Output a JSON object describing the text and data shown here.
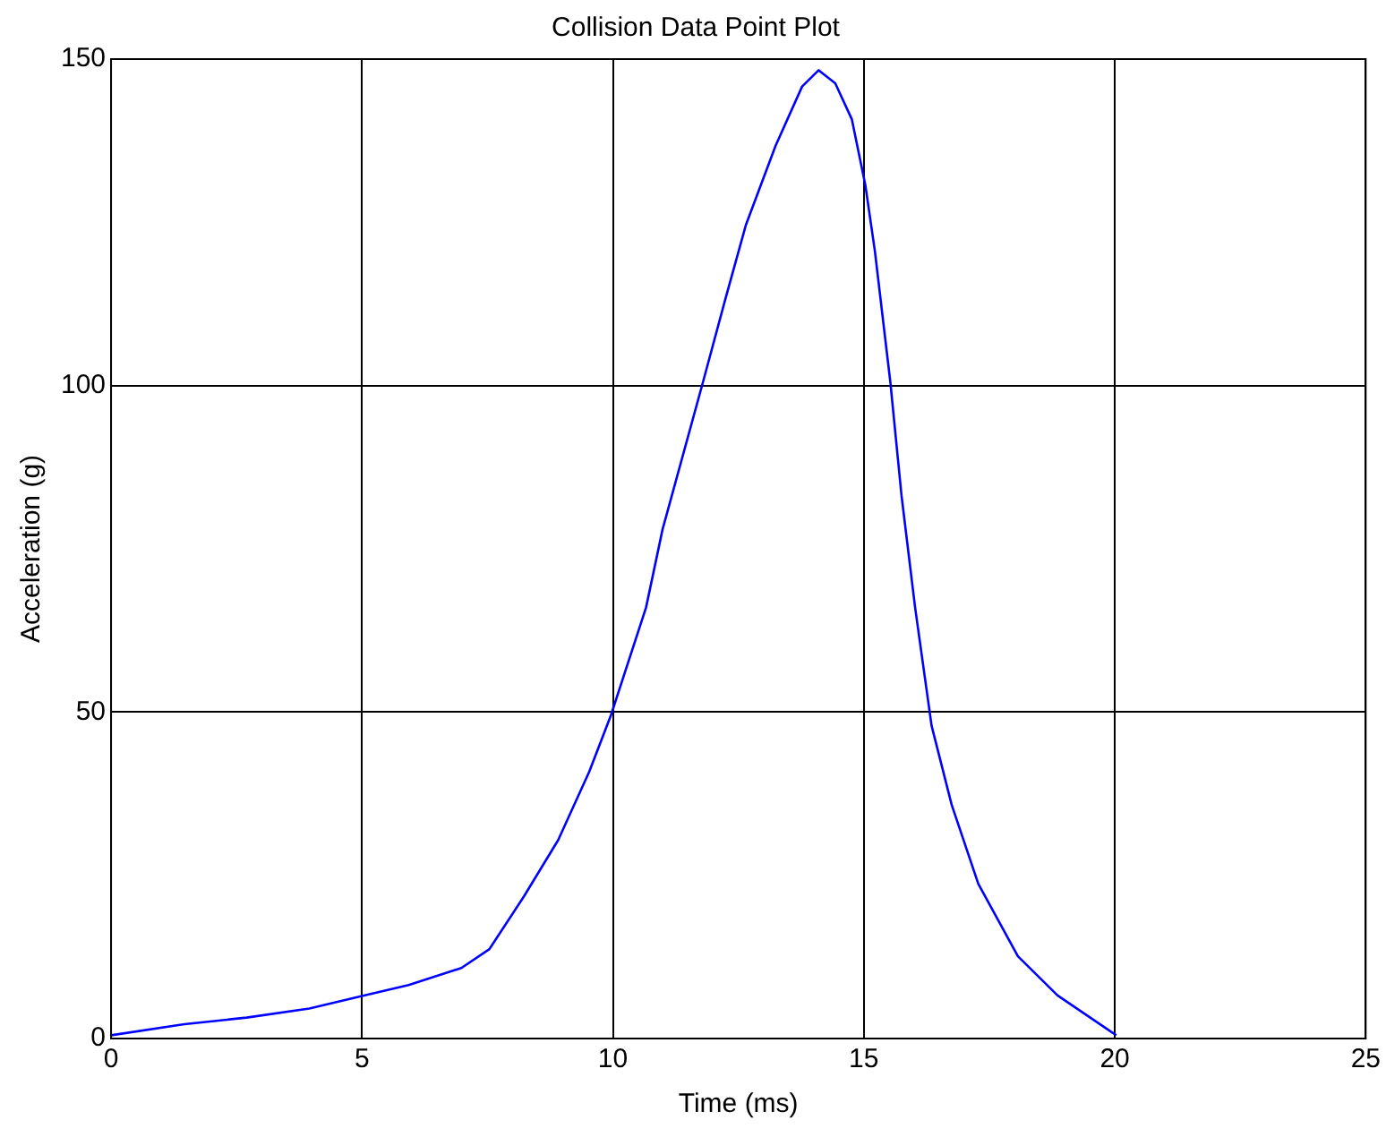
{
  "chart_data": {
    "type": "line",
    "title": "Collision Data Point Plot",
    "xlabel": "Time (ms)",
    "ylabel": "Acceleration (g)",
    "xlim": [
      0,
      25
    ],
    "xticks": [
      0,
      5,
      10,
      15,
      20,
      25
    ],
    "ylim": [
      0,
      150
    ],
    "yticks": [
      0,
      50,
      100,
      150
    ],
    "grid": true,
    "marker": "none",
    "line_style": "solid",
    "series": [
      {
        "color": "#0000ff",
        "x": [
          0,
          1.46,
          2.7,
          3.95,
          5,
          5.93,
          6.98,
          7.54,
          8.23,
          8.91,
          9.53,
          9.96,
          10.66,
          10.99,
          11.79,
          12.25,
          12.65,
          13.24,
          13.77,
          14.1,
          14.43,
          14.76,
          15.03,
          15.22,
          15.53,
          15.75,
          16.02,
          16.35,
          16.75,
          17.28,
          18.07,
          18.86,
          20.03
        ],
        "values": [
          0.5,
          2.2,
          3.2,
          4.6,
          6.5,
          8.2,
          10.8,
          13.7,
          21.8,
          30.4,
          40.9,
          49.5,
          66,
          78,
          100.4,
          113.5,
          124.6,
          136.7,
          145.8,
          148.3,
          146.3,
          140.8,
          130.7,
          120.6,
          100.4,
          83.2,
          66.1,
          47.9,
          35.8,
          23.7,
          12.6,
          6.6,
          0.5
        ]
      }
    ]
  }
}
